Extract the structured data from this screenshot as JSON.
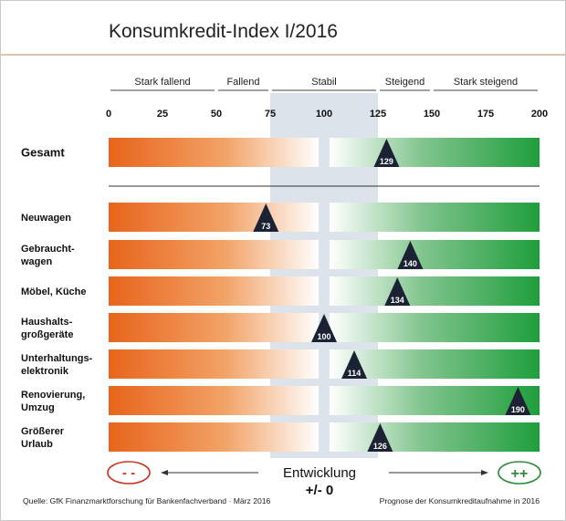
{
  "chart_data": {
    "type": "bar",
    "title": "Konsumkredit-Index I/2016",
    "categories": [
      "Gesamt",
      "Neuwagen",
      "Gebrauchtwagen",
      "Möbel, Küche",
      "Haushaltsgroßgeräte",
      "Unterhaltungselektronik",
      "Renovierung, Umzug",
      "Größerer Urlaub"
    ],
    "category_lines": [
      [
        "Gesamt"
      ],
      [
        "Neuwagen"
      ],
      [
        "Gebraucht-",
        "wagen"
      ],
      [
        "Möbel, Küche"
      ],
      [
        "Haushalts-",
        "großgeräte"
      ],
      [
        "Unterhaltungs-",
        "elektronik"
      ],
      [
        "Renovierung,",
        "Umzug"
      ],
      [
        "Größerer",
        "Urlaub"
      ]
    ],
    "values": [
      129,
      73,
      140,
      134,
      100,
      114,
      190,
      126
    ],
    "xlim": [
      0,
      200
    ],
    "ticks": [
      0,
      25,
      50,
      75,
      100,
      125,
      150,
      175,
      200
    ],
    "zones": [
      {
        "label": "Stark fallend",
        "from": 0,
        "to": 50
      },
      {
        "label": "Fallend",
        "from": 50,
        "to": 75
      },
      {
        "label": "Stabil",
        "from": 75,
        "to": 125
      },
      {
        "label": "Steigend",
        "from": 125,
        "to": 150
      },
      {
        "label": "Stark steigend",
        "from": 150,
        "to": 200
      }
    ],
    "stable_band": [
      75,
      125
    ],
    "colors": {
      "negative": "#e8641b",
      "positive": "#1f9e3c",
      "band": "#dce3ea",
      "marker": "#1b2233",
      "title_rule": "#c8a27a"
    }
  },
  "legend": {
    "minus_label": "- -",
    "plus_label": "++",
    "center_label": "Entwicklung",
    "center_value": "+/- 0"
  },
  "footer": {
    "source": "Quelle: GfK Finanzmarktforschung für Bankenfachverband · März 2016",
    "note": "Prognose der Konsumkreditaufnahme in 2016"
  }
}
